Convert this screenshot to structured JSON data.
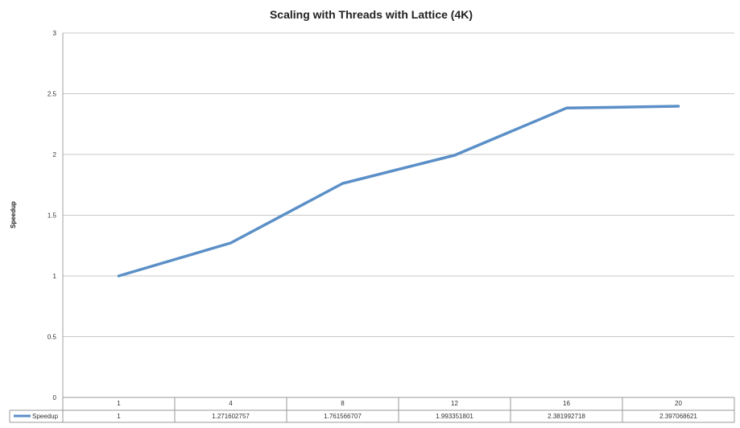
{
  "chart_data": {
    "type": "line",
    "title": "Scaling with Threads with Lattice (4K)",
    "xlabel": "",
    "ylabel": "Speedup",
    "ylim": [
      0,
      3
    ],
    "y_ticks": [
      0,
      0.5,
      1,
      1.5,
      2,
      2.5,
      3
    ],
    "y_tick_labels": [
      "0",
      "0.5",
      "1",
      "1.5",
      "2",
      "2.5",
      "3"
    ],
    "grid": true,
    "legend": "bottom-left in data table",
    "categories": [
      "1",
      "4",
      "8",
      "12",
      "16",
      "20"
    ],
    "series": [
      {
        "name": "Speedup",
        "values": [
          1,
          1.271602757,
          1.761566707,
          1.993351801,
          2.381992718,
          2.397068621
        ],
        "value_labels": [
          "1",
          "1.271602757",
          "1.761566707",
          "1.993351801",
          "2.381992718",
          "2.397068621"
        ],
        "color": "#5B8FC7"
      }
    ],
    "data_table": true
  }
}
